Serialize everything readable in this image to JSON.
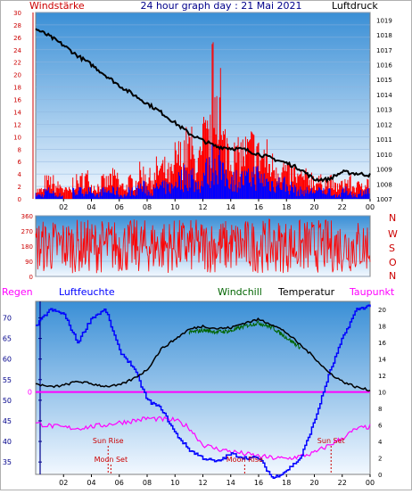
{
  "header": {
    "title": "24 hour graph day : 21 Mai 2021",
    "left_label": "Windstärke",
    "right_label": "Luftdruck"
  },
  "colors": {
    "plot_bg_top": "#3a8fd6",
    "plot_bg_bottom": "#f2f8ff",
    "red": "#ff0000",
    "blue": "#0000ff",
    "black": "#000000",
    "magenta": "#ff00ff",
    "green": "#006400",
    "dark_red": "#cc0000",
    "navy": "#00008b"
  },
  "labels": {
    "legend": {
      "regen": "Regen",
      "luftfeuchte": "Luftfeuchte",
      "windchill": "Windchill",
      "temperatur": "Temperatur",
      "taupunkt": "Taupunkt"
    },
    "sun_rise": "Sun Rise",
    "sun_set": "Sun Set",
    "moon_set": "Moon Set",
    "moon_rise": "Moon Rise",
    "compass": [
      "N",
      "W",
      "S",
      "O",
      "N"
    ]
  },
  "chart_data": [
    {
      "type": "line",
      "name": "wind-pressure",
      "x_ticks": [
        "02",
        "04",
        "06",
        "08",
        "10",
        "12",
        "14",
        "16",
        "18",
        "20",
        "22",
        "00"
      ],
      "y_left_ticks": [
        0,
        2,
        4,
        6,
        8,
        10,
        12,
        14,
        16,
        18,
        20,
        22,
        24,
        26,
        28,
        30
      ],
      "y_right_ticks": [
        1007,
        1008,
        1009,
        1010,
        1011,
        1012,
        1013,
        1014,
        1015,
        1016,
        1017,
        1018,
        1019
      ],
      "y_left_range": [
        0,
        30
      ],
      "y_right_range": [
        1007,
        1019.5
      ],
      "series": [
        {
          "name": "Windstärke",
          "color": "#ff0000",
          "values": [
            2,
            4,
            3,
            2,
            4,
            5,
            3,
            4,
            5,
            3,
            4,
            6,
            5,
            7,
            6,
            10,
            12,
            9,
            14,
            26,
            13,
            10,
            11,
            12,
            10,
            8,
            7,
            6,
            5,
            5,
            4,
            4,
            3,
            4,
            3,
            4
          ]
        },
        {
          "name": "Windstärke",
          "color": "#0000ff",
          "values": [
            1,
            2,
            1,
            0,
            2,
            2,
            1,
            2,
            2,
            1,
            2,
            3,
            2,
            3,
            3,
            5,
            6,
            4,
            7,
            10,
            6,
            5,
            5,
            6,
            5,
            4,
            4,
            3,
            2,
            2,
            2,
            2,
            1,
            2,
            1,
            2
          ]
        },
        {
          "name": "Luftdruck",
          "color": "#000000",
          "x": [
            0,
            1,
            2,
            3,
            4,
            5,
            6,
            7,
            8,
            9,
            10,
            11,
            12,
            13,
            14,
            15,
            16,
            17,
            18,
            19,
            20,
            21,
            22,
            23,
            24
          ],
          "values": [
            1018.4,
            1017.9,
            1017.3,
            1016.6,
            1016.0,
            1015.3,
            1014.6,
            1014.0,
            1013.4,
            1012.8,
            1012.1,
            1011.4,
            1010.9,
            1010.5,
            1010.4,
            1010.3,
            1010.0,
            1009.7,
            1009.4,
            1009.0,
            1008.3,
            1008.3,
            1008.8,
            1008.7,
            1008.6
          ]
        }
      ]
    },
    {
      "type": "line",
      "name": "wind-direction",
      "x_ticks": [
        "02",
        "04",
        "06",
        "08",
        "10",
        "12",
        "14",
        "16",
        "18",
        "20",
        "22",
        "00"
      ],
      "y_ticks": [
        0,
        90,
        180,
        270,
        360
      ],
      "y_range": [
        0,
        360
      ],
      "series": [
        {
          "name": "Windrichtung",
          "color": "#ff0000",
          "range": [
            20,
            340
          ]
        }
      ]
    },
    {
      "type": "line",
      "name": "temperature-humidity",
      "x_ticks": [
        "02",
        "04",
        "06",
        "08",
        "10",
        "12",
        "14",
        "16",
        "18",
        "20",
        "22",
        "00"
      ],
      "y_left_ticks": [
        35,
        40,
        45,
        50,
        55,
        60,
        65,
        70
      ],
      "y_left_range": [
        32,
        74
      ],
      "y_right_ticks": [
        0,
        2,
        4,
        6,
        8,
        10,
        12,
        14,
        16,
        18,
        20
      ],
      "y_right_range": [
        0,
        21
      ],
      "rain_axis_label": "0",
      "series": [
        {
          "name": "Luftfeuchte",
          "color": "#0000ff",
          "x": [
            0,
            1,
            2,
            3,
            4,
            5,
            6,
            7,
            8,
            9,
            10,
            11,
            12,
            13,
            14,
            15,
            16,
            17,
            18,
            19,
            20,
            21,
            22,
            23,
            24
          ],
          "values": [
            68,
            72,
            71,
            64,
            70,
            72,
            62,
            58,
            50,
            48,
            42,
            38,
            36,
            35,
            37,
            36,
            36,
            31,
            33,
            36,
            45,
            56,
            65,
            72,
            73
          ]
        },
        {
          "name": "Temperatur",
          "color": "#000000",
          "x": [
            0,
            1,
            2,
            3,
            4,
            5,
            6,
            7,
            8,
            9,
            10,
            11,
            12,
            13,
            14,
            15,
            16,
            17,
            18,
            19,
            20,
            21,
            22,
            23,
            24
          ],
          "values": [
            11,
            10.6,
            10.8,
            11.3,
            11,
            10.7,
            10.8,
            11.6,
            12.7,
            15.2,
            16.4,
            17.6,
            18,
            17.7,
            17.8,
            18.4,
            18.8,
            18.2,
            17.2,
            15.7,
            14.2,
            12.4,
            11.3,
            10.6,
            10.2
          ]
        },
        {
          "name": "Windchill",
          "color": "#006400",
          "x": [
            11,
            12,
            13,
            14,
            15,
            16,
            17,
            18,
            19
          ],
          "values": [
            17.2,
            17.5,
            17.3,
            17.4,
            18.0,
            18.4,
            17.8,
            16.6,
            15.4
          ]
        },
        {
          "name": "Taupunkt",
          "color": "#ff00ff",
          "x": [
            0,
            1,
            2,
            3,
            4,
            5,
            6,
            7,
            8,
            9,
            10,
            11,
            12,
            13,
            14,
            15,
            16,
            17,
            18,
            19,
            20,
            21,
            22,
            23,
            24
          ],
          "values": [
            6.2,
            5.9,
            5.7,
            5.6,
            5.8,
            6.0,
            6.3,
            6.5,
            6.8,
            6.7,
            6.6,
            5.7,
            3.6,
            3.1,
            2.8,
            2.5,
            2.2,
            2.0,
            1.9,
            2.2,
            2.6,
            3.5,
            4.4,
            5.5,
            5.8
          ]
        }
      ],
      "events": [
        {
          "label": "Sun Rise",
          "hour": 5.2
        },
        {
          "label": "Sun Set",
          "hour": 21.2
        },
        {
          "label": "Moon Set",
          "hour": 5.4
        },
        {
          "label": "Moon Rise",
          "hour": 15.0
        }
      ]
    }
  ]
}
